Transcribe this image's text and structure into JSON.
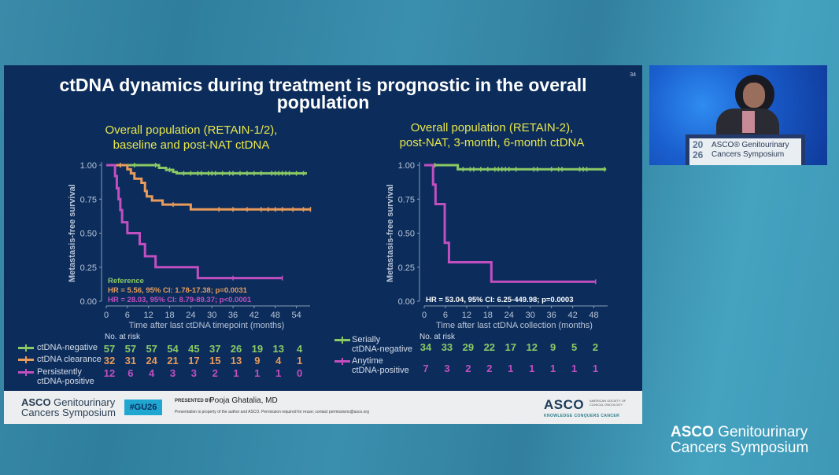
{
  "slide": {
    "number": "34",
    "title_line1": "ctDNA dynamics during treatment is prognostic in the overall",
    "title_line2": "population"
  },
  "colors": {
    "green": "#8bc965",
    "orange": "#e89b5a",
    "magenta": "#c24fc0",
    "slide_bg": "#0c2d5c",
    "subtitle": "#e8e64a"
  },
  "chart_data": [
    {
      "type": "line",
      "subtitle_line1": "Overall population (RETAIN-1/2),",
      "subtitle_line2": "baseline and post-NAT ctDNA",
      "title": "Overall population (RETAIN-1/2), baseline and post-NAT ctDNA",
      "xlabel": "Time after last ctDNA timepoint (months)",
      "ylabel": "Metastasis-free survival",
      "xlim": [
        0,
        57
      ],
      "ylim": [
        0,
        1
      ],
      "xticks": [
        0,
        6,
        12,
        18,
        24,
        30,
        36,
        42,
        48,
        54
      ],
      "yticks": [
        "0.00",
        "0.25",
        "0.50",
        "0.75",
        "1.00"
      ],
      "grid": false,
      "series": [
        {
          "name": "ctDNA-negative",
          "color": "#8bc965",
          "steps": [
            [
              0,
              1.0
            ],
            [
              15,
              0.98
            ],
            [
              17,
              0.965
            ],
            [
              19,
              0.95
            ],
            [
              20,
              0.94
            ],
            [
              57,
              0.94
            ]
          ],
          "censor": [
            4,
            8,
            14,
            18,
            22,
            24,
            26,
            27,
            29,
            30,
            31,
            33,
            35,
            36,
            38,
            40,
            42,
            44,
            47,
            48,
            49,
            50,
            51,
            52,
            54,
            56
          ]
        },
        {
          "name": "ctDNA clearance",
          "color": "#e89b5a",
          "steps": [
            [
              0,
              1.0
            ],
            [
              6,
              0.97
            ],
            [
              7,
              0.94
            ],
            [
              8,
              0.9
            ],
            [
              10,
              0.87
            ],
            [
              11,
              0.81
            ],
            [
              11.5,
              0.77
            ],
            [
              13,
              0.74
            ],
            [
              16,
              0.71
            ],
            [
              24,
              0.675
            ],
            [
              58,
              0.675
            ]
          ],
          "censor": [
            4,
            19,
            32,
            36,
            40,
            44,
            46,
            48,
            50,
            53,
            56,
            58
          ]
        },
        {
          "name": "Persistently ctDNA-positive",
          "color": "#c24fc0",
          "steps": [
            [
              0,
              1.0
            ],
            [
              2.5,
              0.92
            ],
            [
              3,
              0.83
            ],
            [
              3.5,
              0.75
            ],
            [
              4,
              0.67
            ],
            [
              4.5,
              0.58
            ],
            [
              6,
              0.5
            ],
            [
              9.5,
              0.42
            ],
            [
              11,
              0.33
            ],
            [
              14,
              0.25
            ],
            [
              26,
              0.17
            ],
            [
              50,
              0.17
            ]
          ],
          "censor": [
            36,
            50
          ]
        }
      ],
      "annotations": [
        {
          "text": "Reference",
          "color": "#8bc965"
        },
        {
          "text": "HR = 5.56, 95% CI: 1.78-17.38; p=0.0031",
          "color": "#e89b5a"
        },
        {
          "text": "HR = 28.03, 95% CI: 8.79-89.37; p<0.0001",
          "color": "#c24fc0"
        }
      ],
      "risk_table": {
        "header": "No. at risk",
        "rows": [
          {
            "label": "ctDNA-negative",
            "label_lines": [
              "ctDNA-negative"
            ],
            "color": "#8bc965",
            "values": [
              "57",
              "57",
              "57",
              "54",
              "45",
              "37",
              "26",
              "19",
              "13",
              "4"
            ]
          },
          {
            "label": "ctDNA clearance",
            "label_lines": [
              "ctDNA clearance"
            ],
            "color": "#e89b5a",
            "values": [
              "32",
              "31",
              "24",
              "21",
              "17",
              "15",
              "13",
              "9",
              "4",
              "1"
            ]
          },
          {
            "label": "Persistently ctDNA-positive",
            "label_lines": [
              "Persistently",
              "ctDNA-positive"
            ],
            "color": "#c24fc0",
            "values": [
              "12",
              "6",
              "4",
              "3",
              "3",
              "2",
              "1",
              "1",
              "1",
              "0"
            ]
          }
        ]
      }
    },
    {
      "type": "line",
      "subtitle_line1": "Overall population (RETAIN-2),",
      "subtitle_line2": "post-NAT, 3-month, 6-month ctDNA",
      "title": "Overall population (RETAIN-2), post-NAT, 3-month, 6-month ctDNA",
      "xlabel": "Time after last ctDNA collection (months)",
      "ylabel": "Metastasis-free survival",
      "xlim": [
        0,
        51
      ],
      "ylim": [
        0,
        1
      ],
      "xticks": [
        0,
        6,
        12,
        18,
        24,
        30,
        36,
        42,
        48
      ],
      "yticks": [
        "0.00",
        "0.25",
        "0.50",
        "0.75",
        "1.00"
      ],
      "grid": false,
      "series": [
        {
          "name": "Serially ctDNA-negative",
          "color": "#8bc965",
          "steps": [
            [
              0,
              1.0
            ],
            [
              9.5,
              0.97
            ],
            [
              51.5,
              0.97
            ]
          ],
          "censor": [
            3,
            11,
            13,
            14,
            16,
            18,
            20,
            21,
            22,
            23,
            24,
            26,
            31,
            32,
            36,
            38,
            39,
            44,
            45,
            46,
            51
          ]
        },
        {
          "name": "Anytime ctDNA-positive",
          "color": "#c24fc0",
          "steps": [
            [
              0,
              1.0
            ],
            [
              2.5,
              0.857
            ],
            [
              3.2,
              0.714
            ],
            [
              5.8,
              0.429
            ],
            [
              7,
              0.286
            ],
            [
              19,
              0.143
            ],
            [
              48.5,
              0.143
            ]
          ],
          "censor": [
            48.5
          ]
        }
      ],
      "annotations": [
        {
          "text": "HR = 53.04, 95% CI: 6.25-449.98; p=0.0003",
          "color": "#ffffff"
        }
      ],
      "risk_table": {
        "header": "No. at risk",
        "rows": [
          {
            "label": "Serially ctDNA-negative",
            "label_lines": [
              "Serially",
              "ctDNA-negative"
            ],
            "color": "#8bc965",
            "values": [
              "34",
              "33",
              "29",
              "22",
              "17",
              "12",
              "9",
              "5",
              "2"
            ]
          },
          {
            "label": "Anytime ctDNA-positive",
            "label_lines": [
              "Anytime",
              "ctDNA-positive"
            ],
            "color": "#c24fc0",
            "values": [
              "7",
              "3",
              "2",
              "2",
              "1",
              "1",
              "1",
              "1",
              "1"
            ]
          }
        ]
      }
    }
  ],
  "footer": {
    "logo_bold": "ASCO",
    "logo_rest": " Genitourinary",
    "logo_line2": "Cancers Symposium",
    "hashtag": "#GU26",
    "presented_by_label": "PRESENTED BY:",
    "presenter": "Pooja Ghatalia, MD",
    "disclaimer": "Presentation is property of the author and ASCO. Permission required for reuse; contact permissions@asco.org",
    "asco_mark": "ASCO",
    "asco_society": "AMERICAN SOCIETY OF CLINICAL ONCOLOGY",
    "asco_tagline": "KNOWLEDGE CONQUERS CANCER"
  },
  "video": {
    "podium_year_top": "20",
    "podium_year_bottom": "26",
    "podium_line1": "ASCO® Genitourinary",
    "podium_line2": "Cancers Symposium"
  },
  "brand": {
    "bold": "ASCO",
    "rest": " Genitourinary",
    "line2": "Cancers Symposium"
  }
}
